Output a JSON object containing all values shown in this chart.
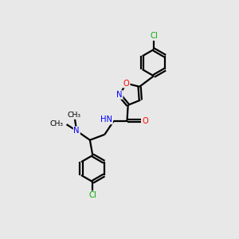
{
  "background_color": "#e8e8e8",
  "bond_color": "#000000",
  "n_color": "#0000ff",
  "o_color": "#ff0000",
  "cl_color": "#00aa00",
  "figsize": [
    3.0,
    3.0
  ],
  "dpi": 100,
  "xlim": [
    0,
    10
  ],
  "ylim": [
    0,
    10
  ],
  "lw": 1.6,
  "fs": 7.2
}
